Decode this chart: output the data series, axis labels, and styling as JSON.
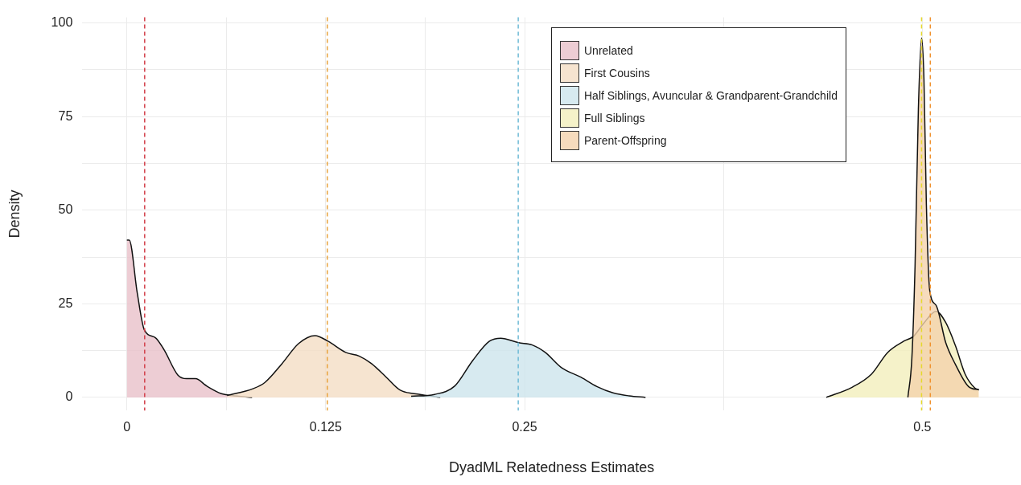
{
  "chart_data": {
    "type": "area",
    "xlabel": "DyadML Relatedness Estimates",
    "ylabel": "Density",
    "xlim": [
      -0.028,
      0.562
    ],
    "ylim": [
      -3.5,
      101.5
    ],
    "xticks": [
      0,
      {
        "value": 0.0625,
        "label": null
      },
      0.125,
      {
        "value": 0.1875,
        "label": null
      },
      0.25,
      {
        "value": 0.375,
        "label": null
      },
      0.5
    ],
    "yticks": [
      0,
      {
        "value": 12.5,
        "label": null
      },
      25,
      {
        "value": 37.5,
        "label": null
      },
      50,
      {
        "value": 62.5,
        "label": null
      },
      75,
      {
        "value": 87.5,
        "label": null
      },
      100
    ],
    "grid": true,
    "legend": "top right",
    "series": [
      {
        "name": "Unrelated",
        "color": "#e8c1c9",
        "x": [
          0,
          0.0015,
          0.0066,
          0.011,
          0.0178,
          0.0234,
          0.032,
          0.0376,
          0.0431,
          0.0503,
          0.0594,
          0.066,
          0.0787
        ],
        "values": [
          42,
          42,
          27.7,
          18,
          16,
          12.7,
          6,
          5,
          5,
          3,
          1,
          0.5,
          0
        ]
      },
      {
        "name": "First Cousins",
        "color": "#f4ddc4",
        "x": [
          0.063,
          0.0792,
          0.0868,
          0.0975,
          0.108,
          0.1183,
          0.1264,
          0.1376,
          0.1462,
          0.1538,
          0.163,
          0.1716,
          0.1843,
          0.197
        ],
        "values": [
          0.5,
          2.3,
          4,
          9,
          14.4,
          16.5,
          15,
          12,
          11,
          9,
          5.4,
          2,
          0.8,
          0
        ]
      },
      {
        "name": "Half Siblings, Avuncular & Grandparent-Grandchild",
        "color": "#cde5ec",
        "x": [
          0.1787,
          0.1934,
          0.206,
          0.2173,
          0.2279,
          0.235,
          0.2462,
          0.2548,
          0.263,
          0.273,
          0.2853,
          0.2954,
          0.3056,
          0.3157,
          0.326
        ],
        "values": [
          0.3,
          0.8,
          3,
          9.8,
          15,
          15.8,
          14.6,
          14,
          12,
          8,
          5.4,
          2.9,
          1.2,
          0.4,
          0
        ]
      },
      {
        "name": "Full Siblings",
        "color": "#f3efbb",
        "x": [
          0.4396,
          0.4558,
          0.468,
          0.4782,
          0.4883,
          0.4944,
          0.5005,
          0.5086,
          0.5147,
          0.5208,
          0.5269,
          0.533,
          0.5355
        ],
        "values": [
          0,
          2.7,
          6.2,
          12,
          15,
          16.3,
          19.6,
          23,
          20,
          13.8,
          6.2,
          2.5,
          2
        ]
      },
      {
        "name": "Parent-Offspring",
        "color": "#f4d2ac",
        "x": [
          0.4909,
          0.4934,
          0.4954,
          0.4975,
          0.4995,
          0.501,
          0.5025,
          0.5046,
          0.5086,
          0.5147,
          0.5208,
          0.529,
          0.5355
        ],
        "values": [
          0,
          10.4,
          35,
          77,
          96,
          85,
          52,
          28.7,
          24.6,
          14.6,
          8.8,
          2.9,
          2
        ]
      }
    ],
    "ref_lines": [
      {
        "axis": "x",
        "value": 0.0112,
        "color": "#d33f49",
        "line_style": "dashed"
      },
      {
        "axis": "x",
        "value": 0.126,
        "color": "#e8a33d",
        "line_style": "dashed"
      },
      {
        "axis": "x",
        "value": 0.246,
        "color": "#6fbad6",
        "line_style": "dashed"
      },
      {
        "axis": "x",
        "value": 0.4995,
        "color": "#e6d92c",
        "line_style": "dashed"
      },
      {
        "axis": "x",
        "value": 0.505,
        "color": "#f0922e",
        "line_style": "dashed"
      }
    ]
  }
}
